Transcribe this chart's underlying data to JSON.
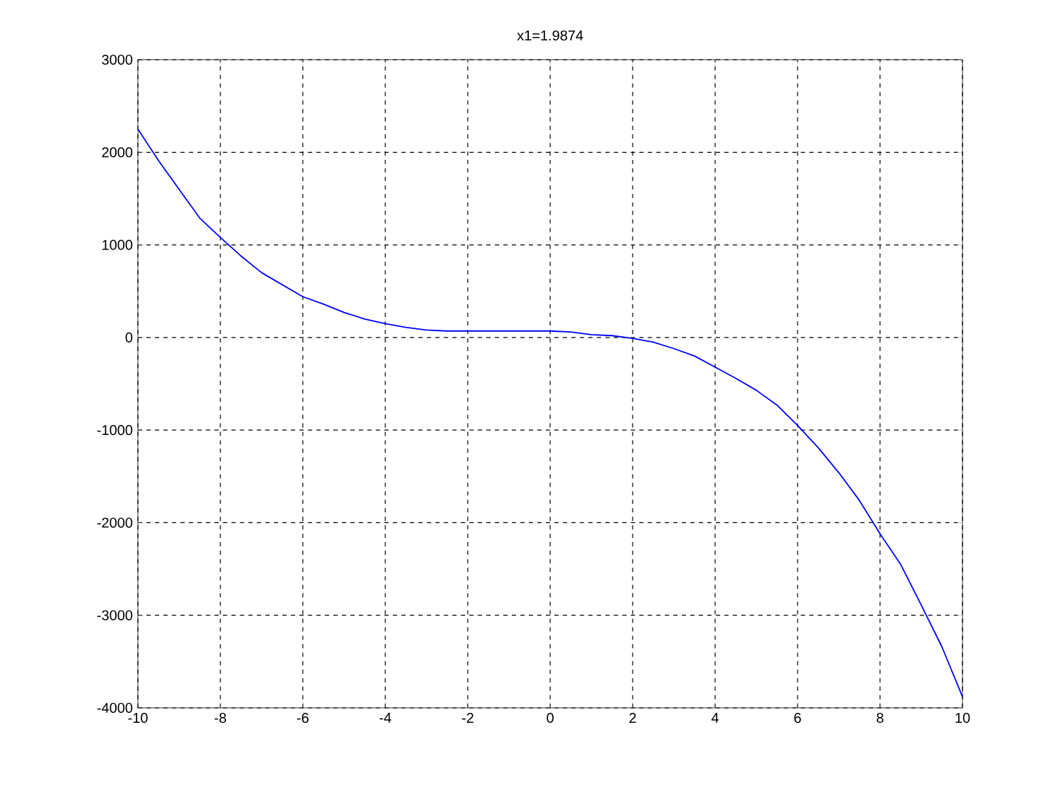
{
  "chart_data": {
    "type": "line",
    "title": "x1=1.9874",
    "x": [
      -10,
      -9.5,
      -9,
      -8.5,
      -8,
      -7.5,
      -7,
      -6.5,
      -6,
      -5.5,
      -5,
      -4.5,
      -4,
      -3.5,
      -3,
      -2.5,
      -2,
      -1,
      0,
      0.5,
      1,
      1.5,
      2,
      2.5,
      3,
      3.5,
      4,
      4.5,
      5,
      5.5,
      6,
      6.5,
      7,
      7.5,
      8,
      8.5,
      9,
      9.5,
      10
    ],
    "series": [
      {
        "color": "#0000ff",
        "values": [
          2250,
          1910,
          1600,
          1290,
          1080,
          880,
          700,
          570,
          440,
          360,
          270,
          200,
          150,
          110,
          80,
          70,
          70,
          70,
          70,
          60,
          30,
          20,
          -10,
          -50,
          -120,
          -200,
          -320,
          -440,
          -570,
          -730,
          -950,
          -1190,
          -1460,
          -1760,
          -2120,
          -2450,
          -2890,
          -3340,
          -3880
        ]
      }
    ],
    "xlim": [
      -10,
      10
    ],
    "ylim": [
      -4000,
      3000
    ],
    "xticks": [
      -10,
      -8,
      -6,
      -4,
      -2,
      0,
      2,
      4,
      6,
      8,
      10
    ],
    "yticks": [
      -4000,
      -3000,
      -2000,
      -1000,
      0,
      1000,
      2000,
      3000
    ],
    "grid": true,
    "marker": "none",
    "line_style": "solid"
  }
}
